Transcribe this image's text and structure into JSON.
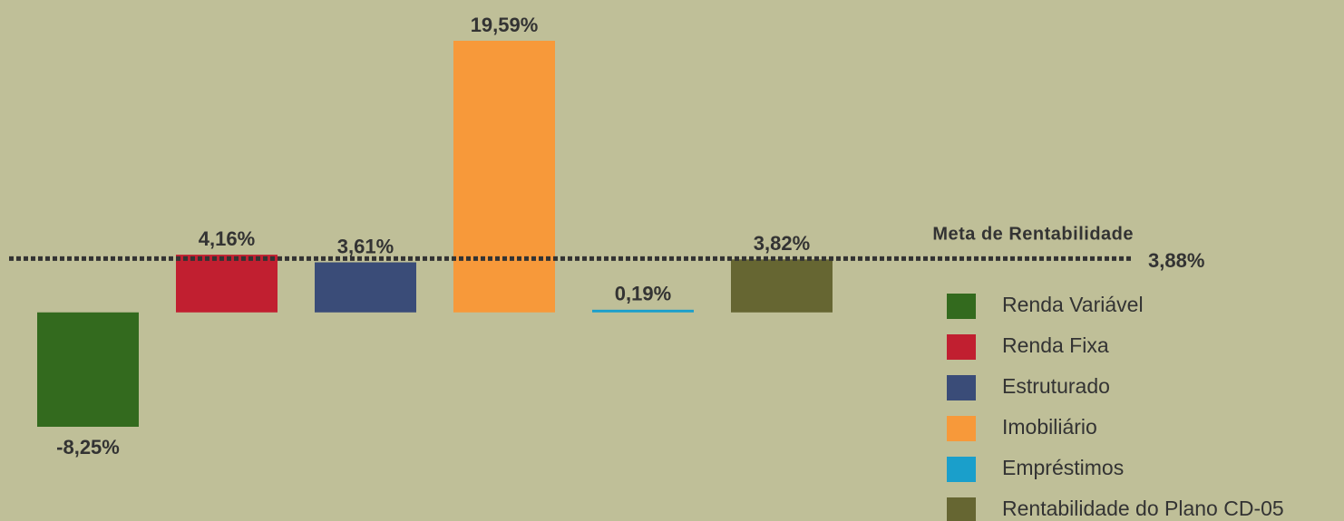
{
  "chart_data": {
    "type": "bar",
    "categories": [
      "Renda Variável",
      "Renda Fixa",
      "Estruturado",
      "Imobiliário",
      "Empréstimos",
      "Rentabilidade do Plano CD-05"
    ],
    "values": [
      -8.25,
      4.16,
      3.61,
      19.59,
      0.19,
      3.82
    ],
    "value_labels": [
      "-8,25%",
      "4,16%",
      "3,61%",
      "19,59%",
      "0,19%",
      "3,82%"
    ],
    "colors": [
      "#336a1e",
      "#c11f30",
      "#3a4c78",
      "#f7993a",
      "#1a9fcb",
      "#666632"
    ],
    "reference_line": {
      "label": "Meta de Rentabilidade",
      "value": 3.88,
      "value_label": "3,88%"
    },
    "legend": true
  }
}
